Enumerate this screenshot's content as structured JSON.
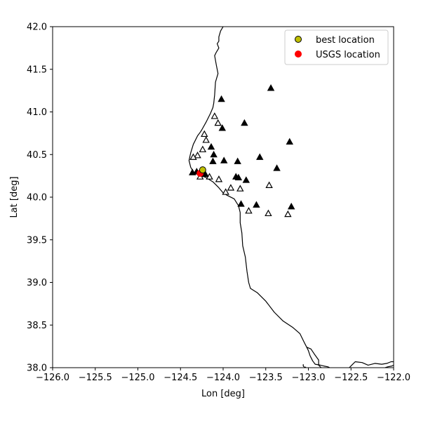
{
  "chart_data": {
    "type": "scatter",
    "title": "",
    "xlabel": "Lon [deg]",
    "ylabel": "Lat [deg]",
    "xlim": [
      -126.0,
      -122.0
    ],
    "ylim": [
      38.0,
      42.0
    ],
    "xticks": [
      -126.0,
      -125.5,
      -125.0,
      -124.5,
      -124.0,
      -123.5,
      -123.0,
      -122.5,
      -122.0
    ],
    "yticks": [
      38.0,
      38.5,
      39.0,
      39.5,
      40.0,
      40.5,
      41.0,
      41.5,
      42.0
    ],
    "xtick_labels": [
      "−126.0",
      "−125.5",
      "−125.0",
      "−124.5",
      "−124.0",
      "−123.5",
      "−123.0",
      "−122.5",
      "−122.0"
    ],
    "ytick_labels": [
      "38.0",
      "38.5",
      "39.0",
      "39.5",
      "40.0",
      "40.5",
      "41.0",
      "41.5",
      "42.0"
    ],
    "grid": false,
    "legend_position": "top-right",
    "legend": [
      {
        "label": "best location",
        "marker": "circle",
        "color": "#bfbf00",
        "edge": "#000000"
      },
      {
        "label": "USGS location",
        "marker": "circle",
        "color": "#ff0000",
        "edge": "#ff0000"
      }
    ],
    "stations_filled": [
      [
        -124.02,
        41.15
      ],
      [
        -123.44,
        41.28
      ],
      [
        -124.01,
        40.81
      ],
      [
        -123.75,
        40.87
      ],
      [
        -124.14,
        40.59
      ],
      [
        -124.11,
        40.5
      ],
      [
        -124.12,
        40.42
      ],
      [
        -123.99,
        40.43
      ],
      [
        -123.83,
        40.42
      ],
      [
        -123.57,
        40.47
      ],
      [
        -123.22,
        40.65
      ],
      [
        -123.37,
        40.34
      ],
      [
        -123.85,
        40.24
      ],
      [
        -123.82,
        40.23
      ],
      [
        -123.73,
        40.2
      ],
      [
        -123.79,
        39.92
      ],
      [
        -123.61,
        39.91
      ],
      [
        -123.2,
        39.89
      ],
      [
        -124.36,
        40.29
      ],
      [
        -124.31,
        40.3
      ],
      [
        -124.21,
        40.27
      ]
    ],
    "stations_open": [
      [
        -124.1,
        40.95
      ],
      [
        -124.06,
        40.87
      ],
      [
        -124.22,
        40.74
      ],
      [
        -124.2,
        40.67
      ],
      [
        -124.24,
        40.56
      ],
      [
        -124.3,
        40.49
      ],
      [
        -124.35,
        40.47
      ],
      [
        -124.05,
        40.21
      ],
      [
        -124.16,
        40.24
      ],
      [
        -124.27,
        40.24
      ],
      [
        -123.97,
        40.06
      ],
      [
        -123.91,
        40.11
      ],
      [
        -123.8,
        40.1
      ],
      [
        -123.7,
        39.84
      ],
      [
        -123.47,
        39.81
      ],
      [
        -123.46,
        40.14
      ],
      [
        -123.24,
        39.8
      ]
    ],
    "best_location": [
      -124.24,
      40.32
    ],
    "usgs_location": [
      -124.27,
      40.28
    ],
    "coastline": [
      [
        -124.0,
        42.0
      ],
      [
        -124.03,
        41.95
      ],
      [
        -124.05,
        41.88
      ],
      [
        -124.05,
        41.83
      ],
      [
        -124.07,
        41.8
      ],
      [
        -124.05,
        41.75
      ],
      [
        -124.08,
        41.7
      ],
      [
        -124.1,
        41.66
      ],
      [
        -124.08,
        41.55
      ],
      [
        -124.06,
        41.45
      ],
      [
        -124.09,
        41.35
      ],
      [
        -124.1,
        41.2
      ],
      [
        -124.11,
        41.1
      ],
      [
        -124.12,
        41.05
      ],
      [
        -124.15,
        40.98
      ],
      [
        -124.2,
        40.88
      ],
      [
        -124.25,
        40.79
      ],
      [
        -124.27,
        40.76
      ],
      [
        -124.3,
        40.72
      ],
      [
        -124.35,
        40.62
      ],
      [
        -124.38,
        40.52
      ],
      [
        -124.4,
        40.43
      ],
      [
        -124.38,
        40.35
      ],
      [
        -124.35,
        40.3
      ],
      [
        -124.31,
        40.27
      ],
      [
        -124.25,
        40.25
      ],
      [
        -124.2,
        40.23
      ],
      [
        -124.12,
        40.18
      ],
      [
        -124.05,
        40.11
      ],
      [
        -124.0,
        40.05
      ],
      [
        -123.95,
        40.02
      ],
      [
        -123.87,
        39.98
      ],
      [
        -123.82,
        39.9
      ],
      [
        -123.8,
        39.82
      ],
      [
        -123.8,
        39.7
      ],
      [
        -123.78,
        39.58
      ],
      [
        -123.77,
        39.43
      ],
      [
        -123.74,
        39.3
      ],
      [
        -123.72,
        39.13
      ],
      [
        -123.7,
        39.0
      ],
      [
        -123.68,
        38.93
      ],
      [
        -123.6,
        38.88
      ],
      [
        -123.5,
        38.78
      ],
      [
        -123.4,
        38.65
      ],
      [
        -123.3,
        38.55
      ],
      [
        -123.18,
        38.47
      ],
      [
        -123.1,
        38.4
      ],
      [
        -123.05,
        38.3
      ],
      [
        -123.02,
        38.24
      ],
      [
        -122.97,
        38.22
      ],
      [
        -122.93,
        38.16
      ],
      [
        -122.88,
        38.09
      ],
      [
        -122.88,
        38.03
      ],
      [
        -122.85,
        38.0
      ]
    ],
    "bay_shore": [
      [
        -122.52,
        38.0
      ],
      [
        -122.48,
        38.04
      ],
      [
        -122.45,
        38.07
      ],
      [
        -122.37,
        38.06
      ],
      [
        -122.3,
        38.03
      ],
      [
        -122.22,
        38.05
      ],
      [
        -122.14,
        38.04
      ],
      [
        -122.08,
        38.05
      ],
      [
        -122.03,
        38.07
      ],
      [
        -122.0,
        38.07
      ]
    ],
    "bay_shore_2": [
      [
        -122.1,
        38.0
      ],
      [
        -122.07,
        38.01
      ],
      [
        -122.02,
        38.02
      ],
      [
        -122.0,
        38.03
      ]
    ],
    "point_reyes": [
      [
        -123.02,
        38.24
      ],
      [
        -123.0,
        38.2
      ],
      [
        -122.98,
        38.14
      ],
      [
        -122.95,
        38.08
      ],
      [
        -122.92,
        38.04
      ],
      [
        -122.86,
        38.03
      ],
      [
        -122.82,
        38.02
      ],
      [
        -122.77,
        38.01
      ],
      [
        -122.75,
        38.0
      ]
    ],
    "inlet_tip": [
      [
        -123.03,
        38.01
      ],
      [
        -123.04,
        38.0
      ],
      [
        -123.06,
        38.02
      ],
      [
        -123.06,
        38.04
      ]
    ]
  }
}
